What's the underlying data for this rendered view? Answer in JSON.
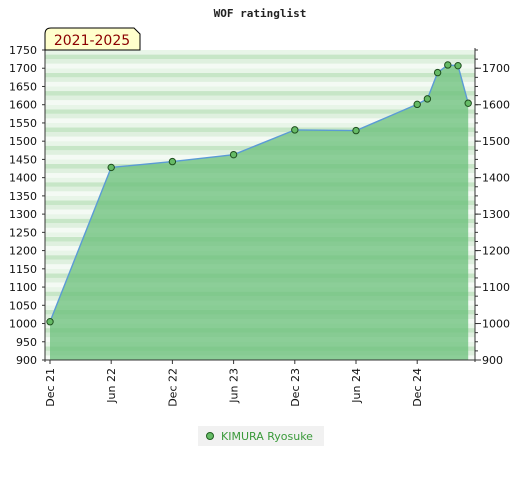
{
  "chart_data": {
    "type": "area",
    "title": "WOF ratinglist",
    "period_label": "2021-2025",
    "x_tick_labels": [
      "Dec 21",
      "Jun 22",
      "Dec 22",
      "Jun 23",
      "Dec 23",
      "Jun 24",
      "Dec 24"
    ],
    "x_tick_dates": [
      "2021-12",
      "2022-06",
      "2022-12",
      "2023-06",
      "2023-12",
      "2024-06",
      "2024-12"
    ],
    "left_y_ticks": [
      900,
      950,
      1000,
      1050,
      1100,
      1150,
      1200,
      1250,
      1300,
      1350,
      1400,
      1450,
      1500,
      1550,
      1600,
      1650,
      1700,
      1750
    ],
    "right_y_ticks": [
      900,
      1000,
      1100,
      1200,
      1300,
      1400,
      1500,
      1600,
      1700
    ],
    "ylim": [
      900,
      1750
    ],
    "series": [
      {
        "name": "KIMURA Ryosuke",
        "color": "#66bb66",
        "line_color": "#5b9bd5",
        "points": [
          {
            "date": "2021-12",
            "value": 1005
          },
          {
            "date": "2022-06",
            "value": 1428
          },
          {
            "date": "2022-12",
            "value": 1444
          },
          {
            "date": "2023-06",
            "value": 1463
          },
          {
            "date": "2023-12",
            "value": 1531
          },
          {
            "date": "2024-06",
            "value": 1529
          },
          {
            "date": "2024-12",
            "value": 1601
          },
          {
            "date": "2025-01",
            "value": 1616
          },
          {
            "date": "2025-02",
            "value": 1688
          },
          {
            "date": "2025-03",
            "value": 1709
          },
          {
            "date": "2025-04",
            "value": 1707
          },
          {
            "date": "2025-05",
            "value": 1604
          }
        ]
      }
    ],
    "legend_position": "bottom-center"
  }
}
